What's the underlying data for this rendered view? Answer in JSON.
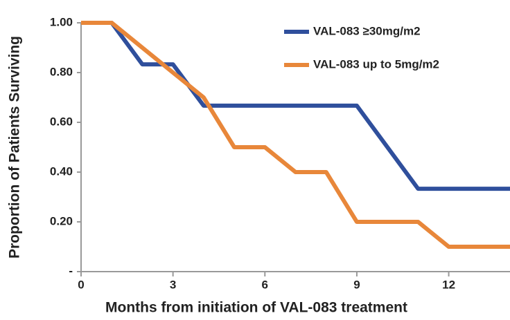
{
  "chart_data": {
    "type": "line",
    "xlabel": "Months from initiation of VAL-083 treatment",
    "ylabel": "Proportion of Patients Surviving",
    "series": [
      {
        "name": "VAL-083 ≥30mg/m2",
        "color": "#2f4f9c",
        "x": [
          0,
          1,
          2,
          3,
          4,
          9,
          11,
          14
        ],
        "values": [
          1,
          1,
          0.833,
          0.833,
          0.667,
          0.667,
          0.333,
          0.333
        ]
      },
      {
        "name": "VAL-083 up to 5mg/m2",
        "color": "#e8873a",
        "x": [
          0,
          1,
          3,
          4,
          5,
          6,
          7,
          8,
          9,
          11,
          12,
          14
        ],
        "values": [
          1,
          1,
          0.8,
          0.7,
          0.5,
          0.5,
          0.4,
          0.4,
          0.2,
          0.2,
          0.1,
          0.1
        ]
      }
    ],
    "xlim": [
      0,
      14
    ],
    "xticks": [
      0,
      3,
      6,
      9,
      12
    ],
    "ylim": [
      0,
      1
    ],
    "yticks": [
      {
        "value": 0,
        "label": "-"
      },
      {
        "value": 0.2,
        "label": "0.20"
      },
      {
        "value": 0.4,
        "label": "0.40"
      },
      {
        "value": 0.6,
        "label": "0.60"
      },
      {
        "value": 0.8,
        "label": "0.80"
      },
      {
        "value": 1,
        "label": "1.00"
      }
    ],
    "legend": "upper right"
  }
}
